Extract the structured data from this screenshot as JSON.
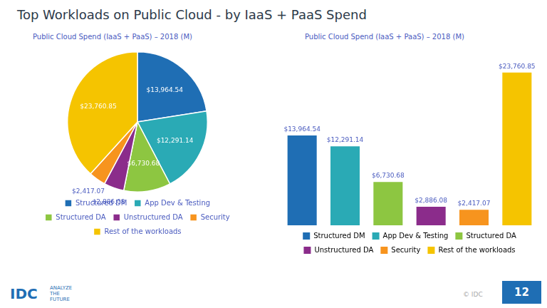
{
  "chart_data": [
    {
      "type": "pie",
      "title": "Top Workloads on Public Cloud - by IaaS + PaaS Spend",
      "subtitle": "Public Cloud Spend (IaaS + PaaS) – 2018 (M)",
      "categories": [
        "Structured DM",
        "App Dev & Testing",
        "Structured DA",
        "Unstructured DA",
        "Security",
        "Rest of the workloads"
      ],
      "values": [
        13964.54,
        12291.14,
        6730.68,
        2886.08,
        2417.07,
        23760.85
      ],
      "value_labels": [
        "$13,964.54",
        "$12,291.14",
        "$6,730.68",
        "$2,886.08",
        "$2,417.07",
        "$23,760.85"
      ],
      "colors": [
        "#1f6eb4",
        "#2aaab5",
        "#8dc641",
        "#8b2c8b",
        "#f7941e",
        "#f5c400"
      ],
      "data_labels": true,
      "legend": "bottom",
      "annotations": [
        "IDC",
        "ANALYZE\nTHE\nFUTURE",
        "© IDC",
        "12"
      ]
    },
    {
      "type": "bar",
      "subtitle": "Public Cloud Spend (IaaS + PaaS) – 2018 (M)",
      "categories": [
        "Structured DM",
        "App Dev & Testing",
        "Structured DA",
        "Unstructured DA",
        "Security",
        "Rest of the workloads"
      ],
      "values": [
        13964.54,
        12291.14,
        6730.68,
        2886.08,
        2417.07,
        23760.85
      ],
      "value_labels": [
        "$13,964.54",
        "$12,291.14",
        "$6,730.68",
        "$2,886.08",
        "$2,417.07",
        "$23,760.85"
      ],
      "colors": [
        "#1f6eb4",
        "#2aaab5",
        "#8dc641",
        "#8b2c8b",
        "#f7941e",
        "#f5c400"
      ],
      "ylim": [
        0,
        27500
      ],
      "grid": false,
      "tick_labels": false,
      "data_labels": true,
      "legend": "bottom"
    }
  ]
}
